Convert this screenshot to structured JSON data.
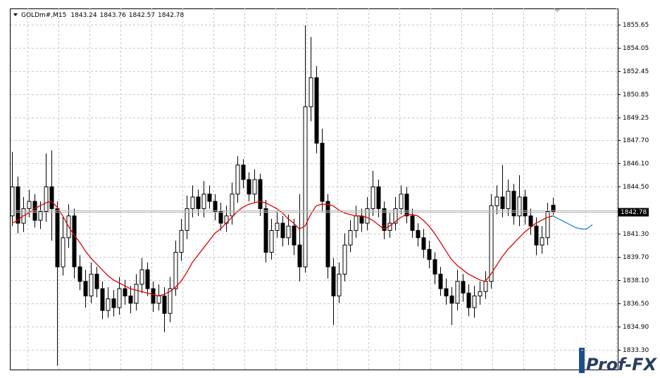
{
  "chart_data": {
    "type": "candlestick",
    "symbol": "GOLDm#,M15",
    "watermark": "Prof-FX",
    "ylim": [
      1831.94,
      1856.76
    ],
    "yticks": [
      {
        "value": 1833.3,
        "label": "1833.30"
      },
      {
        "value": 1834.9,
        "label": "1834.90"
      },
      {
        "value": 1836.5,
        "label": "1836.50"
      },
      {
        "value": 1838.1,
        "label": "1838.10"
      },
      {
        "value": 1839.7,
        "label": "1839.70"
      },
      {
        "value": 1841.3,
        "label": "1841.30"
      },
      {
        "value": 1844.5,
        "label": "1844.50"
      },
      {
        "value": 1846.1,
        "label": "1846.10"
      },
      {
        "value": 1847.7,
        "label": "1847.70"
      },
      {
        "value": 1849.25,
        "label": "1849.25"
      },
      {
        "value": 1850.85,
        "label": "1850.85"
      },
      {
        "value": 1852.45,
        "label": "1852.45"
      },
      {
        "value": 1854.05,
        "label": "1854.05"
      },
      {
        "value": 1855.65,
        "label": "1855.65"
      }
    ],
    "grid": true,
    "open": [
      1842.5,
      1844.5,
      1842.0,
      1843.0,
      1843.5,
      1842.2,
      1842.8,
      1844.5,
      1843.0,
      1839.0,
      1841.0,
      1842.5,
      1839.0,
      1838.0,
      1837.0,
      1838.5,
      1837.5,
      1836.0,
      1836.8,
      1836.2,
      1837.5,
      1837.0,
      1836.5,
      1837.8,
      1838.8,
      1837.5,
      1836.5,
      1837.0,
      1835.8,
      1837.5,
      1840.0,
      1841.5,
      1843.0,
      1843.8,
      1843.0,
      1844.0,
      1843.5,
      1842.8,
      1842.0,
      1842.5,
      1844.0,
      1846.0,
      1845.0,
      1844.0,
      1845.0,
      1843.0,
      1840.0,
      1841.5,
      1842.0,
      1841.0,
      1841.8,
      1840.5,
      1839.0,
      1850.0,
      1852.0,
      1847.5,
      1843.5,
      1839.0,
      1837.0,
      1838.5,
      1840.5,
      1841.5,
      1842.5,
      1842.0,
      1843.0,
      1844.5,
      1843.0,
      1841.5,
      1842.0,
      1843.0,
      1844.0,
      1842.5,
      1841.5,
      1841.0,
      1840.2,
      1839.5,
      1838.5,
      1837.5,
      1837.0,
      1836.5,
      1838.0,
      1837.2,
      1836.2,
      1837.0,
      1837.3,
      1838.0,
      1843.2,
      1843.8,
      1843.0,
      1844.2,
      1842.5,
      1843.8,
      1842.5,
      1841.8,
      1840.5,
      1841.0,
      1843.24
    ],
    "high": [
      1846.9,
      1845.2,
      1843.8,
      1844.3,
      1844.0,
      1843.5,
      1846.8,
      1847.0,
      1843.5,
      1842.5,
      1843.3,
      1843.0,
      1839.8,
      1838.8,
      1839.3,
      1839.0,
      1838.0,
      1837.6,
      1837.4,
      1838.3,
      1838.1,
      1837.7,
      1838.5,
      1839.6,
      1839.3,
      1838.0,
      1837.8,
      1837.6,
      1838.3,
      1840.8,
      1842.3,
      1843.9,
      1844.6,
      1844.3,
      1844.9,
      1844.6,
      1844.0,
      1843.4,
      1843.2,
      1844.8,
      1846.6,
      1846.4,
      1845.5,
      1845.7,
      1845.4,
      1843.6,
      1842.3,
      1842.8,
      1842.5,
      1842.6,
      1842.3,
      1844.0,
      1855.6,
      1854.8,
      1852.8,
      1848.5,
      1844.0,
      1839.6,
      1839.3,
      1841.3,
      1842.2,
      1843.2,
      1843.0,
      1843.8,
      1845.6,
      1845.0,
      1843.5,
      1842.7,
      1843.8,
      1844.6,
      1844.5,
      1843.0,
      1842.0,
      1841.6,
      1840.8,
      1840.0,
      1839.0,
      1838.2,
      1837.6,
      1838.8,
      1838.5,
      1837.8,
      1837.7,
      1838.0,
      1838.7,
      1844.0,
      1844.6,
      1846.0,
      1845.0,
      1844.7,
      1845.3,
      1844.3,
      1843.0,
      1842.4,
      1841.8,
      1843.4,
      1843.76
    ],
    "low": [
      1841.8,
      1841.3,
      1841.4,
      1842.4,
      1841.7,
      1841.6,
      1842.1,
      1840.8,
      1832.2,
      1838.4,
      1840.3,
      1838.2,
      1837.4,
      1836.2,
      1836.5,
      1836.9,
      1835.4,
      1835.5,
      1835.6,
      1835.7,
      1836.4,
      1835.8,
      1836.0,
      1837.2,
      1837.0,
      1835.9,
      1836.0,
      1834.5,
      1835.2,
      1837.0,
      1839.4,
      1840.9,
      1842.4,
      1842.5,
      1842.4,
      1843.0,
      1842.2,
      1841.5,
      1841.4,
      1841.9,
      1843.4,
      1844.4,
      1843.5,
      1843.4,
      1842.5,
      1839.3,
      1839.5,
      1841.0,
      1840.4,
      1840.5,
      1839.8,
      1838.0,
      1838.6,
      1849.0,
      1846.8,
      1842.8,
      1838.2,
      1835.0,
      1836.5,
      1838.0,
      1840.0,
      1841.0,
      1841.4,
      1841.5,
      1842.5,
      1842.4,
      1840.9,
      1841.0,
      1841.5,
      1842.6,
      1842.0,
      1841.0,
      1840.4,
      1839.6,
      1838.9,
      1837.8,
      1837.0,
      1836.4,
      1835.0,
      1836.0,
      1836.6,
      1835.6,
      1835.5,
      1836.4,
      1836.8,
      1837.5,
      1842.6,
      1842.4,
      1842.5,
      1841.9,
      1841.8,
      1841.9,
      1841.2,
      1839.8,
      1839.9,
      1840.5,
      1842.57
    ],
    "close": [
      1844.5,
      1842.0,
      1843.0,
      1843.5,
      1842.2,
      1842.8,
      1844.5,
      1843.0,
      1839.0,
      1841.0,
      1842.5,
      1839.0,
      1838.0,
      1837.0,
      1838.5,
      1837.5,
      1836.0,
      1836.8,
      1836.2,
      1837.5,
      1837.0,
      1836.5,
      1837.8,
      1838.8,
      1837.5,
      1836.5,
      1837.0,
      1835.8,
      1837.5,
      1840.0,
      1841.5,
      1843.0,
      1843.8,
      1843.0,
      1844.0,
      1843.5,
      1842.8,
      1842.0,
      1842.5,
      1844.0,
      1846.0,
      1845.0,
      1844.0,
      1845.0,
      1843.0,
      1840.0,
      1841.5,
      1842.0,
      1841.0,
      1841.8,
      1840.5,
      1839.0,
      1850.0,
      1852.0,
      1847.5,
      1843.5,
      1839.0,
      1837.0,
      1838.5,
      1840.5,
      1841.5,
      1842.5,
      1842.0,
      1843.0,
      1844.5,
      1843.0,
      1841.5,
      1842.0,
      1843.0,
      1844.0,
      1842.5,
      1841.5,
      1841.0,
      1840.2,
      1839.5,
      1838.5,
      1837.5,
      1837.0,
      1836.5,
      1838.0,
      1837.2,
      1836.2,
      1837.0,
      1837.3,
      1838.0,
      1843.2,
      1843.8,
      1843.0,
      1844.2,
      1842.5,
      1843.8,
      1842.5,
      1841.8,
      1840.5,
      1841.0,
      1842.8,
      1842.78
    ],
    "ma": {
      "color": "#e00000",
      "values": [
        1842.0,
        1842.2,
        1842.5,
        1842.7,
        1843.0,
        1843.2,
        1843.4,
        1843.5,
        1843.1,
        1842.5,
        1841.8,
        1841.2,
        1840.7,
        1840.1,
        1839.6,
        1839.2,
        1838.8,
        1838.4,
        1838.1,
        1837.9,
        1837.7,
        1837.5,
        1837.4,
        1837.3,
        1837.2,
        1837.1,
        1837.0,
        1837.1,
        1837.3,
        1837.6,
        1838.0,
        1838.6,
        1839.3,
        1839.8,
        1840.3,
        1840.8,
        1841.3,
        1841.6,
        1842.0,
        1842.4,
        1842.8,
        1843.1,
        1843.3,
        1843.4,
        1843.5,
        1843.4,
        1843.2,
        1843.0,
        1842.7,
        1842.3,
        1842.0,
        1841.6,
        1841.8,
        1842.6,
        1843.2,
        1843.3,
        1843.3,
        1843.2,
        1842.9,
        1842.7,
        1842.6,
        1842.5,
        1842.5,
        1842.4,
        1842.2,
        1841.9,
        1841.6,
        1841.8,
        1842.1,
        1842.4,
        1842.6,
        1842.6,
        1842.5,
        1842.2,
        1841.8,
        1841.3,
        1840.7,
        1840.1,
        1839.5,
        1839.1,
        1838.8,
        1838.5,
        1838.3,
        1838.1,
        1838.0,
        1838.5,
        1839.1,
        1839.7,
        1840.2,
        1840.6,
        1841.0,
        1841.4,
        1841.7,
        1842.0,
        1842.2,
        1842.4,
        1842.5
      ]
    },
    "forecast": {
      "color": "#1e88e5",
      "values": [
        1842.5,
        1842.3,
        1842.1,
        1841.9,
        1841.7,
        1841.6,
        1841.6,
        1841.9
      ]
    }
  }
}
